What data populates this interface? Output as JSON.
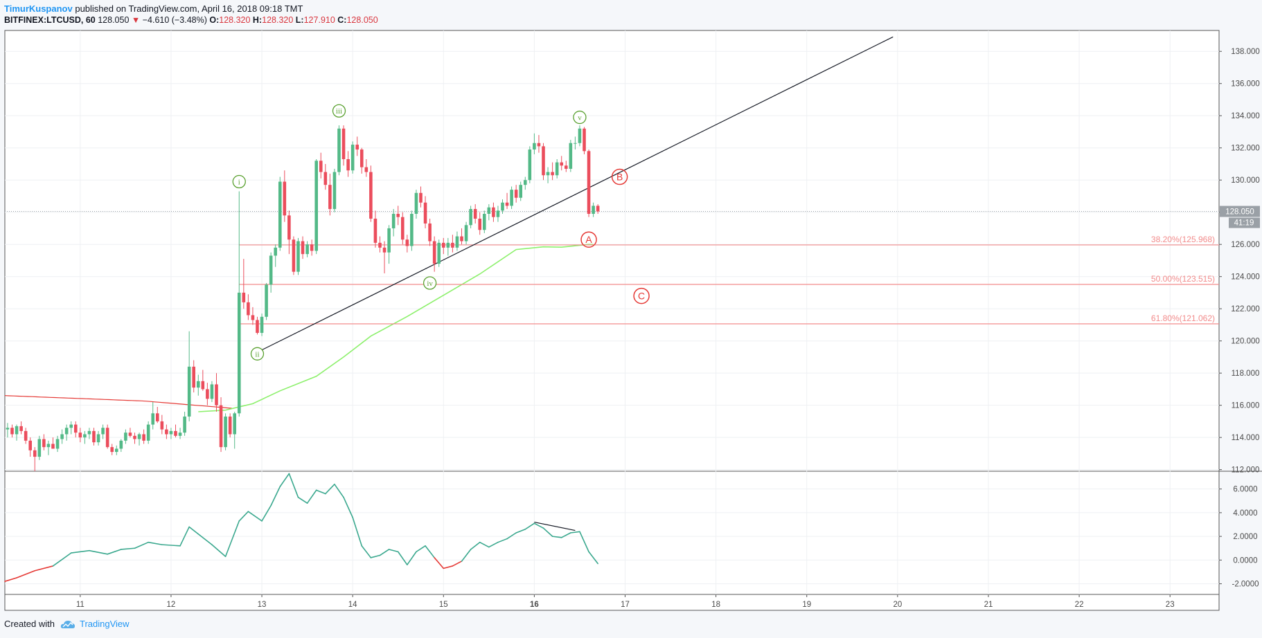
{
  "header": {
    "author": "TimurKuspanov",
    "published": "published on TradingView.com, April 16, 2018 09:18 TMT",
    "symbol": "BITFINEX:LTCUSD, 60",
    "last": "128.050",
    "change": "−4.610 (−3.48%)",
    "o_label": "O:",
    "o_value": "128.320",
    "h_label": "H:",
    "h_value": "128.320",
    "l_label": "L:",
    "l_value": "127.910",
    "c_label": "C:",
    "c_value": "128.050"
  },
  "footer": {
    "created_with": "Created with",
    "brand": "TradingView"
  },
  "colors": {
    "up": "#53b987",
    "down": "#eb4d5c",
    "ma": "#8cf06b",
    "red_ma": "#e53935",
    "fib": "#f28b8b",
    "wave_green": "#5aa130",
    "wave_red": "#e53935",
    "osc": "#3aa88e"
  },
  "chart_data": [
    {
      "type": "candlestick",
      "x_ticks": [
        "11",
        "12",
        "13",
        "14",
        "15",
        "16",
        "17",
        "18",
        "19",
        "20",
        "21",
        "22",
        "23"
      ],
      "y_ticks": [
        "112.000",
        "114.000",
        "116.000",
        "118.000",
        "120.000",
        "122.000",
        "124.000",
        "126.000",
        "128.000",
        "130.000",
        "132.000",
        "134.000",
        "136.000",
        "138.000"
      ],
      "ylim": [
        111.9,
        139.3
      ],
      "xlim": [
        10.17,
        23.54
      ],
      "last_price_label": "128.050",
      "countdown_label": "41:19",
      "candles": [
        [
          10.2,
          114.5,
          114.9,
          114.0,
          114.6
        ],
        [
          10.25,
          114.6,
          114.8,
          114.0,
          114.2
        ],
        [
          10.3,
          114.2,
          114.8,
          113.8,
          114.7
        ],
        [
          10.35,
          114.7,
          115.0,
          114.2,
          114.4
        ],
        [
          10.4,
          114.4,
          114.6,
          113.6,
          113.8
        ],
        [
          10.45,
          113.8,
          114.0,
          112.8,
          113.2
        ],
        [
          10.5,
          113.2,
          113.4,
          111.9,
          112.8
        ],
        [
          10.55,
          112.8,
          114.1,
          112.6,
          113.9
        ],
        [
          10.6,
          113.9,
          114.2,
          113.2,
          113.4
        ],
        [
          10.65,
          113.4,
          113.8,
          112.9,
          113.6
        ],
        [
          10.7,
          113.6,
          114.0,
          113.3,
          113.3
        ],
        [
          10.75,
          113.3,
          114.1,
          113.1,
          113.9
        ],
        [
          10.8,
          113.9,
          114.5,
          113.6,
          114.2
        ],
        [
          10.85,
          114.2,
          114.8,
          113.8,
          114.6
        ],
        [
          10.9,
          114.6,
          115.0,
          114.2,
          114.8
        ],
        [
          10.95,
          114.8,
          115.0,
          114.0,
          114.3
        ],
        [
          11.0,
          114.3,
          114.6,
          113.7,
          114.0
        ],
        [
          11.05,
          114.0,
          114.4,
          113.6,
          114.2
        ],
        [
          11.1,
          114.2,
          114.6,
          113.9,
          114.4
        ],
        [
          11.15,
          114.4,
          114.6,
          113.5,
          113.7
        ],
        [
          11.2,
          113.7,
          114.4,
          113.5,
          114.2
        ],
        [
          11.25,
          114.2,
          114.8,
          113.9,
          114.6
        ],
        [
          11.3,
          114.6,
          114.8,
          113.3,
          113.4
        ],
        [
          11.35,
          113.4,
          113.6,
          112.9,
          113.1
        ],
        [
          11.4,
          113.1,
          113.5,
          112.9,
          113.3
        ],
        [
          11.45,
          113.3,
          113.9,
          113.1,
          113.8
        ],
        [
          11.5,
          113.8,
          114.5,
          113.6,
          114.3
        ],
        [
          11.55,
          114.3,
          114.6,
          114.0,
          114.1
        ],
        [
          11.6,
          114.1,
          114.3,
          113.6,
          113.9
        ],
        [
          11.65,
          113.9,
          114.3,
          113.5,
          114.2
        ],
        [
          11.7,
          114.2,
          114.5,
          113.6,
          113.8
        ],
        [
          11.75,
          113.8,
          115.0,
          113.6,
          114.8
        ],
        [
          11.8,
          114.8,
          116.2,
          114.5,
          115.5
        ],
        [
          11.85,
          115.5,
          115.9,
          114.9,
          115.0
        ],
        [
          11.9,
          115.0,
          115.4,
          114.2,
          114.5
        ],
        [
          11.95,
          114.5,
          114.8,
          113.9,
          114.2
        ],
        [
          12.0,
          114.2,
          114.6,
          113.9,
          114.4
        ],
        [
          12.05,
          114.4,
          114.8,
          114.0,
          114.1
        ],
        [
          12.1,
          114.1,
          114.6,
          113.9,
          114.3
        ],
        [
          12.15,
          114.3,
          115.6,
          114.1,
          115.3
        ],
        [
          12.2,
          115.3,
          120.6,
          115.0,
          118.4
        ],
        [
          12.25,
          118.4,
          118.8,
          116.8,
          117.1
        ],
        [
          12.3,
          117.1,
          117.9,
          116.6,
          117.5
        ],
        [
          12.35,
          117.5,
          118.2,
          116.9,
          117.0
        ],
        [
          12.4,
          117.0,
          117.4,
          116.0,
          116.4
        ],
        [
          12.45,
          116.4,
          117.5,
          116.2,
          117.3
        ],
        [
          12.5,
          117.3,
          118.0,
          115.6,
          116.0
        ],
        [
          12.55,
          116.0,
          116.5,
          113.1,
          113.4
        ],
        [
          12.6,
          113.4,
          115.5,
          113.2,
          115.3
        ],
        [
          12.65,
          115.3,
          115.5,
          114.0,
          114.2
        ],
        [
          12.7,
          114.2,
          115.6,
          113.3,
          115.5
        ],
        [
          12.75,
          115.5,
          129.3,
          115.3,
          123.0
        ],
        [
          12.8,
          123.0,
          125.1,
          122.0,
          122.4
        ],
        [
          12.85,
          122.4,
          122.9,
          121.3,
          121.6
        ],
        [
          12.9,
          121.6,
          122.1,
          121.0,
          121.3
        ],
        [
          12.95,
          121.3,
          121.5,
          120.4,
          120.5
        ],
        [
          13.0,
          120.5,
          121.7,
          120.3,
          121.5
        ],
        [
          13.05,
          121.5,
          123.6,
          121.3,
          123.5
        ],
        [
          13.1,
          123.5,
          125.5,
          123.0,
          125.3
        ],
        [
          13.15,
          125.3,
          126.0,
          124.6,
          125.8
        ],
        [
          13.2,
          125.8,
          130.2,
          125.6,
          129.9
        ],
        [
          13.25,
          129.9,
          130.6,
          127.4,
          127.8
        ],
        [
          13.3,
          127.8,
          128.1,
          125.4,
          126.3
        ],
        [
          13.35,
          126.3,
          126.5,
          124.1,
          124.3
        ],
        [
          13.4,
          124.3,
          126.4,
          124.1,
          126.2
        ],
        [
          13.45,
          126.2,
          126.5,
          125.1,
          125.4
        ],
        [
          13.5,
          125.4,
          126.2,
          125.2,
          126.0
        ],
        [
          13.55,
          126.0,
          126.3,
          125.3,
          125.6
        ],
        [
          13.6,
          125.6,
          131.3,
          125.4,
          131.2
        ],
        [
          13.65,
          131.2,
          131.7,
          130.1,
          130.5
        ],
        [
          13.7,
          130.5,
          131.0,
          129.4,
          129.7
        ],
        [
          13.75,
          129.7,
          130.4,
          127.8,
          128.2
        ],
        [
          13.8,
          128.2,
          130.7,
          128.0,
          130.5
        ],
        [
          13.85,
          130.5,
          133.4,
          130.3,
          133.2
        ],
        [
          13.9,
          133.2,
          133.4,
          130.9,
          131.3
        ],
        [
          13.95,
          131.3,
          131.8,
          130.2,
          130.6
        ],
        [
          14.0,
          130.6,
          132.4,
          130.4,
          132.2
        ],
        [
          14.05,
          132.2,
          132.7,
          131.5,
          131.9
        ],
        [
          14.1,
          131.9,
          132.0,
          130.4,
          130.8
        ],
        [
          14.15,
          130.8,
          131.3,
          130.2,
          130.5
        ],
        [
          14.2,
          130.5,
          130.9,
          127.4,
          127.6
        ],
        [
          14.25,
          127.6,
          128.1,
          125.8,
          126.1
        ],
        [
          14.3,
          126.1,
          126.5,
          125.5,
          125.8
        ],
        [
          14.35,
          125.8,
          126.2,
          124.2,
          125.5
        ],
        [
          14.4,
          125.5,
          127.2,
          124.8,
          127.0
        ],
        [
          14.45,
          127.0,
          128.2,
          126.5,
          127.9
        ],
        [
          14.5,
          127.9,
          128.4,
          127.2,
          127.7
        ],
        [
          14.55,
          127.7,
          128.0,
          126.0,
          126.3
        ],
        [
          14.6,
          126.3,
          126.6,
          125.5,
          125.9
        ],
        [
          14.65,
          125.9,
          128.1,
          125.6,
          127.9
        ],
        [
          14.7,
          127.9,
          129.4,
          127.6,
          129.2
        ],
        [
          14.75,
          129.2,
          129.6,
          128.3,
          128.6
        ],
        [
          14.8,
          128.6,
          129.0,
          127.0,
          127.3
        ],
        [
          14.85,
          127.3,
          127.6,
          125.9,
          126.2
        ],
        [
          14.9,
          126.2,
          126.5,
          124.3,
          124.8
        ],
        [
          14.95,
          124.8,
          126.3,
          124.6,
          126.1
        ],
        [
          15.0,
          126.1,
          126.4,
          125.4,
          125.8
        ],
        [
          15.05,
          125.8,
          126.4,
          125.3,
          126.1
        ],
        [
          15.1,
          126.1,
          126.6,
          125.5,
          125.8
        ],
        [
          15.15,
          125.8,
          126.8,
          125.6,
          126.5
        ],
        [
          15.2,
          126.5,
          127.0,
          126.0,
          126.2
        ],
        [
          15.25,
          126.2,
          127.4,
          126.0,
          127.2
        ],
        [
          15.3,
          127.2,
          128.4,
          127.0,
          128.2
        ],
        [
          15.35,
          128.2,
          128.5,
          127.3,
          127.6
        ],
        [
          15.4,
          127.6,
          128.0,
          126.6,
          126.9
        ],
        [
          15.45,
          126.9,
          128.1,
          126.7,
          127.9
        ],
        [
          15.5,
          127.9,
          128.5,
          127.5,
          128.3
        ],
        [
          15.55,
          128.3,
          128.6,
          127.4,
          127.7
        ],
        [
          15.6,
          127.7,
          128.4,
          127.4,
          128.1
        ],
        [
          15.65,
          128.1,
          128.8,
          127.9,
          128.6
        ],
        [
          15.7,
          128.6,
          129.2,
          128.2,
          128.4
        ],
        [
          15.75,
          128.4,
          129.6,
          128.2,
          129.4
        ],
        [
          15.8,
          129.4,
          129.7,
          128.6,
          128.9
        ],
        [
          15.85,
          128.9,
          129.9,
          128.7,
          129.7
        ],
        [
          15.9,
          129.7,
          130.2,
          129.4,
          130.0
        ],
        [
          15.95,
          130.0,
          132.1,
          129.8,
          131.9
        ],
        [
          16.0,
          131.9,
          132.9,
          131.6,
          132.3
        ],
        [
          16.05,
          132.3,
          132.8,
          131.7,
          132.1
        ],
        [
          16.1,
          132.1,
          132.3,
          130.0,
          130.3
        ],
        [
          16.15,
          130.3,
          130.8,
          129.8,
          130.5
        ],
        [
          16.2,
          130.5,
          131.1,
          130.0,
          130.3
        ],
        [
          16.25,
          130.3,
          131.3,
          130.1,
          131.1
        ],
        [
          16.3,
          131.1,
          131.5,
          130.6,
          130.9
        ],
        [
          16.35,
          130.9,
          131.2,
          130.5,
          130.7
        ],
        [
          16.4,
          130.7,
          132.5,
          130.5,
          132.3
        ],
        [
          16.45,
          132.3,
          132.7,
          131.9,
          132.3
        ],
        [
          16.5,
          132.3,
          133.4,
          132.1,
          133.2
        ],
        [
          16.55,
          133.2,
          133.3,
          131.6,
          131.8
        ],
        [
          16.6,
          131.8,
          131.9,
          127.7,
          127.9
        ],
        [
          16.65,
          127.9,
          128.6,
          127.7,
          128.4
        ],
        [
          16.7,
          128.4,
          128.5,
          127.9,
          128.05
        ]
      ]
    },
    {
      "type": "line",
      "name_hint": "oscillator",
      "y_ticks": [
        "6.0000",
        "4.0000",
        "2.0000",
        "0.0000",
        "-2.0000"
      ],
      "ylim": [
        -2.9,
        7.5
      ],
      "x": [
        10.17,
        10.3,
        10.5,
        10.7,
        10.9,
        11.1,
        11.3,
        11.45,
        11.6,
        11.75,
        11.9,
        12.1,
        12.2,
        12.3,
        12.45,
        12.6,
        12.75,
        12.85,
        13.0,
        13.1,
        13.2,
        13.3,
        13.4,
        13.5,
        13.6,
        13.7,
        13.8,
        13.9,
        14.0,
        14.1,
        14.2,
        14.3,
        14.4,
        14.5,
        14.6,
        14.7,
        14.8,
        14.9,
        15.0,
        15.1,
        15.2,
        15.3,
        15.4,
        15.5,
        15.6,
        15.7,
        15.8,
        15.9,
        16.0,
        16.1,
        16.2,
        16.3,
        16.4,
        16.5,
        16.6,
        16.7
      ],
      "values": [
        -1.8,
        -1.5,
        -0.9,
        -0.5,
        0.6,
        0.8,
        0.5,
        0.9,
        1.0,
        1.5,
        1.3,
        1.2,
        2.8,
        2.2,
        1.3,
        0.3,
        3.3,
        4.1,
        3.3,
        4.6,
        6.2,
        7.3,
        5.3,
        4.8,
        5.9,
        5.6,
        6.4,
        5.3,
        3.6,
        1.2,
        0.2,
        0.4,
        0.9,
        0.7,
        -0.4,
        0.7,
        1.2,
        0.2,
        -0.7,
        -0.5,
        -0.1,
        0.9,
        1.5,
        1.1,
        1.5,
        1.8,
        2.3,
        2.6,
        3.1,
        2.7,
        2.0,
        1.9,
        2.3,
        2.4,
        0.7,
        -0.3
      ]
    }
  ],
  "annotations": {
    "waves": [
      {
        "label": "i",
        "x": 12.75,
        "y": 129.9
      },
      {
        "label": "ii",
        "x": 12.95,
        "y": 119.2
      },
      {
        "label": "iii",
        "x": 13.85,
        "y": 134.3
      },
      {
        "label": "iv",
        "x": 14.85,
        "y": 123.6
      },
      {
        "label": "v",
        "x": 16.5,
        "y": 133.9
      }
    ],
    "abc": [
      {
        "label": "A",
        "x": 16.6,
        "y": 126.3
      },
      {
        "label": "B",
        "x": 16.94,
        "y": 130.2
      },
      {
        "label": "C",
        "x": 17.18,
        "y": 122.8
      }
    ],
    "fib_levels": [
      {
        "label": "38.20%(125.968)",
        "y": 125.968
      },
      {
        "label": "50.00%(123.515)",
        "y": 123.515
      },
      {
        "label": "61.80%(121.062)",
        "y": 121.062
      }
    ],
    "trendline": {
      "from": [
        12.95,
        119.3
      ],
      "to": [
        19.95,
        138.9
      ]
    },
    "osc_divergence": {
      "from": [
        16.0,
        3.2
      ],
      "to": [
        16.45,
        2.5
      ]
    }
  }
}
